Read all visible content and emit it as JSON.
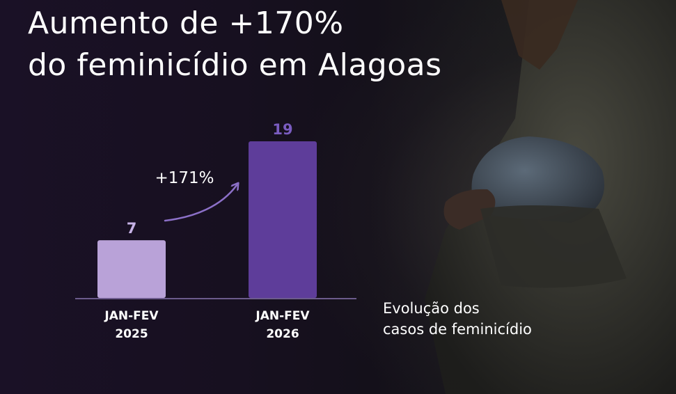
{
  "title": {
    "line1": "Aumento de +170%",
    "line2": "do feminicídio em Alagoas"
  },
  "caption": {
    "line1": "Evolução dos",
    "line2": "casos de feminicídio"
  },
  "chart_data": {
    "type": "bar",
    "categories": [
      [
        "JAN-FEV",
        "2025"
      ],
      [
        "JAN-FEV",
        "2026"
      ]
    ],
    "values": [
      7,
      19
    ],
    "value_labels": [
      "7",
      "19"
    ],
    "annotation": "+171%",
    "ylim": [
      0,
      19
    ],
    "grid": false,
    "colors": {
      "bars": [
        "#b9a2d8",
        "#5e3d9a"
      ],
      "value_labels": [
        "#c6b2e6",
        "#7a5cc0"
      ],
      "baseline": "#6c5b8c",
      "arrow": "#8c70c8",
      "text": "#ffffff"
    }
  }
}
